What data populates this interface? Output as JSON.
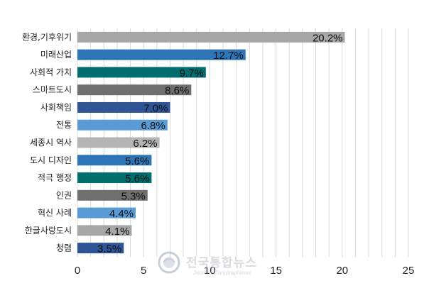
{
  "chart_data": {
    "type": "bar",
    "orientation": "horizontal",
    "categories": [
      "환경,기후위기",
      "미래산업",
      "사회적 가치",
      "스마트도시",
      "사회책임",
      "전통",
      "세종시 역사",
      "도시 디자인",
      "적극 행정",
      "인권",
      "혁신 사례",
      "한글사랑도시",
      "청렴"
    ],
    "values": [
      20.2,
      12.7,
      9.7,
      8.6,
      7.0,
      6.8,
      6.2,
      5.6,
      5.6,
      5.3,
      4.4,
      4.1,
      3.5
    ],
    "value_labels": [
      "20.2%",
      "12.7%",
      "9.7%",
      "8.6%",
      "7.0%",
      "6.8%",
      "6.2%",
      "5.6%",
      "5.6%",
      "5.3%",
      "4.4%",
      "4.1%",
      "3.5%"
    ],
    "colors": [
      "#a6a6a6",
      "#2e75b6",
      "#006e6e",
      "#6f6f6f",
      "#2f5597",
      "#5b9bd5",
      "#b4b4b4",
      "#2e75b6",
      "#006e6e",
      "#6f6f6f",
      "#5b9bd5",
      "#a6a6a6",
      "#2f5597"
    ],
    "xlim": [
      0,
      25
    ],
    "xticks": [
      0,
      5,
      10,
      15,
      20,
      25
    ],
    "xtick_labels": [
      "0",
      "5",
      "10",
      "15",
      "20",
      "25"
    ],
    "grid": "vertical",
    "title": "",
    "xlabel": "",
    "ylabel": ""
  },
  "watermark": {
    "text": "전국통합뉴스",
    "subtext": "JeongugTonghapNews",
    "icon": "globe-logo-icon"
  }
}
